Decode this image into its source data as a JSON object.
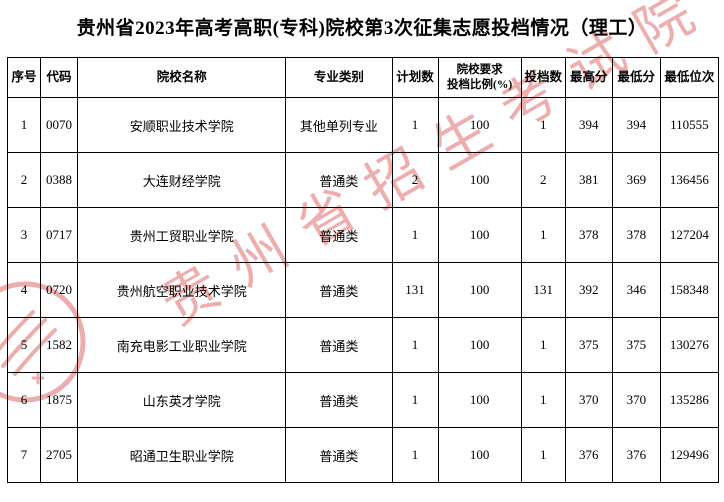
{
  "page": {
    "title": "贵州省2023年高考高职(专科)院校第3次征集志愿投档情况（理工）"
  },
  "watermark": {
    "text": "贵州省招生考试院",
    "color": "#e05f5f"
  },
  "seal": {
    "description": "red-circular-official-seal",
    "color": "#dd6b6b"
  },
  "table": {
    "headers": [
      {
        "label": "序号"
      },
      {
        "label": "代码"
      },
      {
        "label": "院校名称"
      },
      {
        "label": "专业类别"
      },
      {
        "label": "计划数"
      },
      {
        "label": "院校要求",
        "label2": "投档比例(%)"
      },
      {
        "label": "投档数"
      },
      {
        "label": "最高分"
      },
      {
        "label": "最低分"
      },
      {
        "label": "最低位次"
      }
    ],
    "rows": [
      {
        "cells": [
          "1",
          "0070",
          "安顺职业技术学院",
          "其他单列专业",
          "1",
          "100",
          "1",
          "394",
          "394",
          "110555"
        ]
      },
      {
        "cells": [
          "2",
          "0388",
          "大连财经学院",
          "普通类",
          "2",
          "100",
          "2",
          "381",
          "369",
          "136456"
        ]
      },
      {
        "cells": [
          "3",
          "0717",
          "贵州工贸职业学院",
          "普通类",
          "1",
          "100",
          "1",
          "378",
          "378",
          "127204"
        ]
      },
      {
        "cells": [
          "4",
          "0720",
          "贵州航空职业技术学院",
          "普通类",
          "131",
          "100",
          "131",
          "392",
          "346",
          "158348"
        ]
      },
      {
        "cells": [
          "5",
          "1582",
          "南充电影工业职业学院",
          "普通类",
          "1",
          "100",
          "1",
          "375",
          "375",
          "130276"
        ]
      },
      {
        "cells": [
          "6",
          "1875",
          "山东英才学院",
          "普通类",
          "1",
          "100",
          "1",
          "370",
          "370",
          "135286"
        ]
      },
      {
        "cells": [
          "7",
          "2705",
          "昭通卫生职业学院",
          "普通类",
          "1",
          "100",
          "1",
          "376",
          "376",
          "129496"
        ]
      }
    ]
  }
}
